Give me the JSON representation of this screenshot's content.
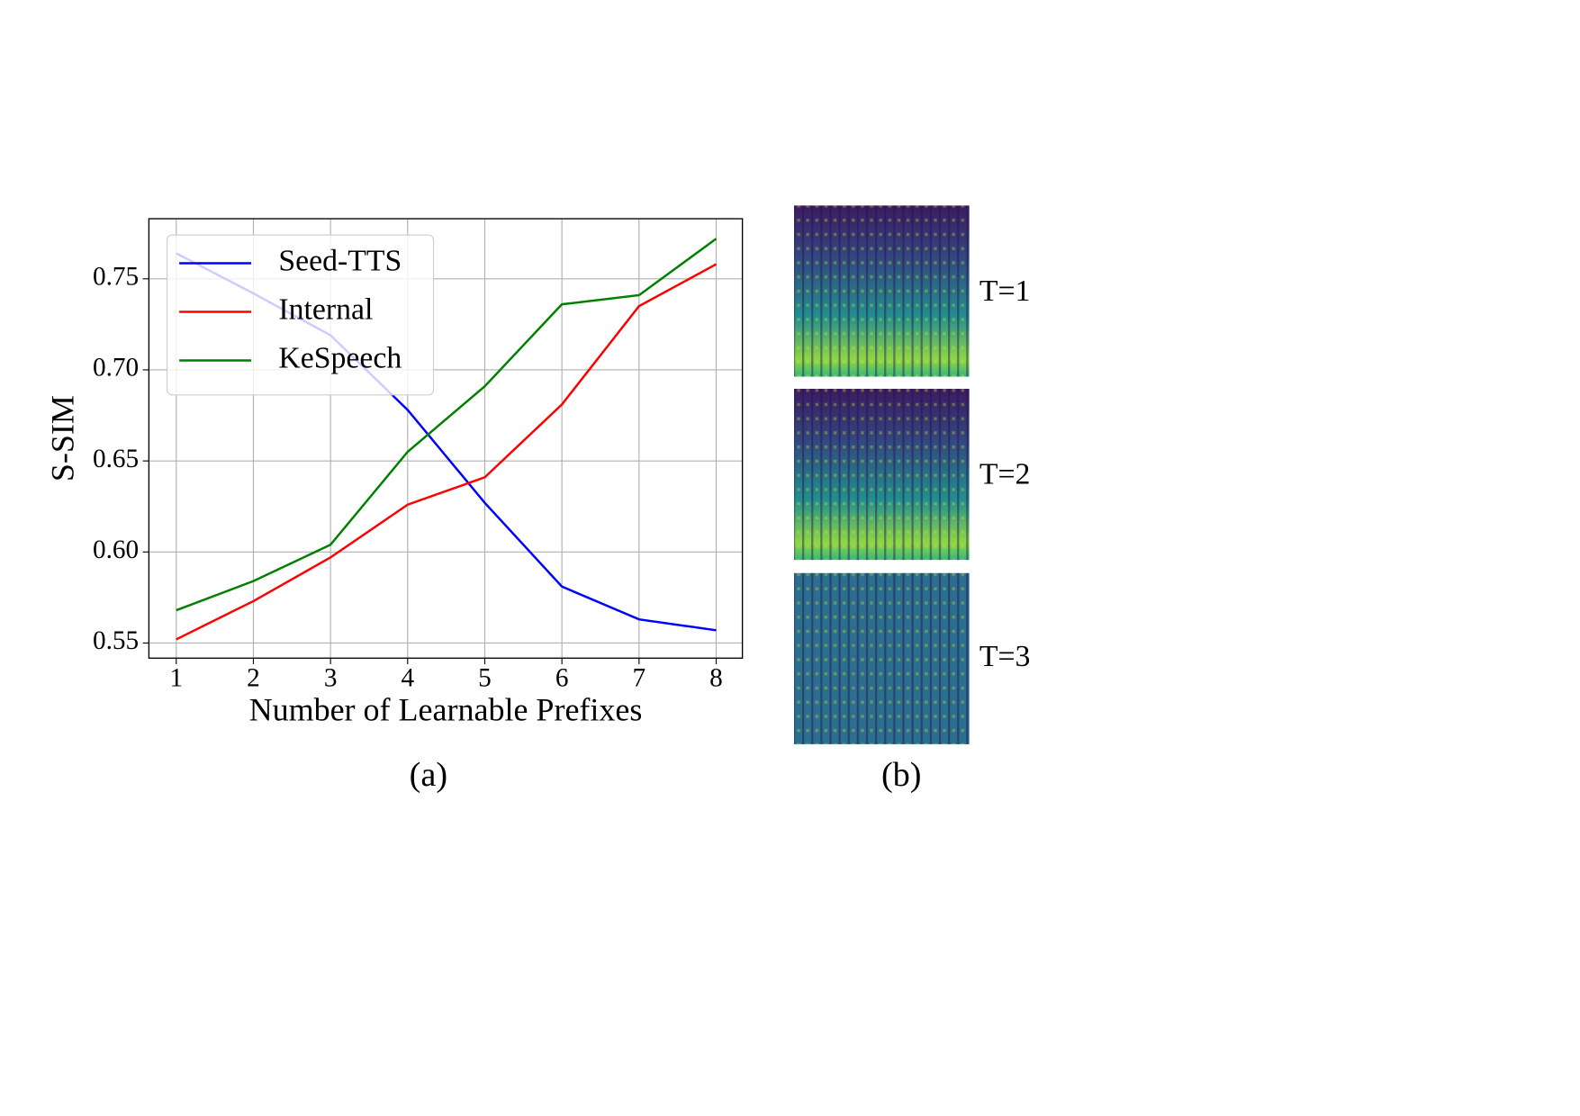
{
  "chart_data": {
    "type": "line",
    "caption": "(a)",
    "xlabel": "Number of Learnable Prefixes",
    "ylabel": "S-SIM",
    "x": [
      1,
      2,
      3,
      4,
      5,
      6,
      7,
      8
    ],
    "series": [
      {
        "name": "Seed-TTS",
        "color": "#0000ff",
        "values": [
          0.764,
          0.742,
          0.719,
          0.678,
          0.627,
          0.581,
          0.563,
          0.557
        ]
      },
      {
        "name": "Internal",
        "color": "#ff0000",
        "values": [
          0.552,
          0.573,
          0.597,
          0.626,
          0.641,
          0.681,
          0.735,
          0.758
        ]
      },
      {
        "name": "KeSpeech",
        "color": "#008000",
        "values": [
          0.568,
          0.584,
          0.604,
          0.655,
          0.691,
          0.736,
          0.741,
          0.772
        ]
      }
    ],
    "xlim": [
      0.645,
      8.34
    ],
    "ylim": [
      0.5417,
      0.783
    ],
    "xticks": [
      1,
      2,
      3,
      4,
      5,
      6,
      7,
      8
    ],
    "yticks": [
      0.55,
      {
        "value": 0.6,
        "label": "0.60"
      },
      0.65,
      {
        "value": 0.7,
        "label": "0.70"
      },
      0.75
    ],
    "grid": true,
    "legend": "upper left"
  },
  "panel_b": {
    "caption": "(b)",
    "labels": [
      "T=1",
      "T=2",
      "T=3"
    ]
  }
}
